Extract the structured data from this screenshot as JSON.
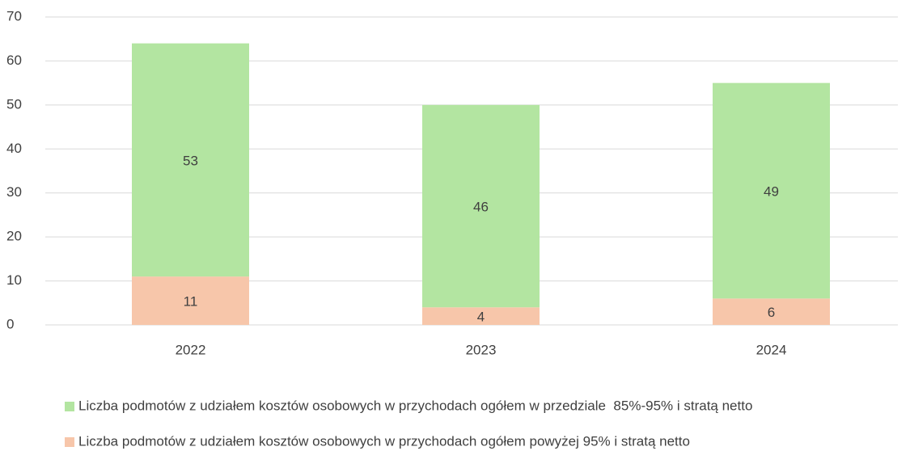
{
  "chart_data": {
    "type": "stacked_bar",
    "categories": [
      "2022",
      "2023",
      "2024"
    ],
    "series": [
      {
        "name": "Liczba podmotów z udziałem kosztów osobowych w przychodach ogółem powyżej 95% i stratą netto",
        "color": "#f7c6aa",
        "values": [
          11,
          4,
          6
        ]
      },
      {
        "name": "Liczba podmotów z udziałem kosztów osobowych w przychodach ogółem w przedziale  85%-95% i stratą netto",
        "color": "#b3e5a1",
        "values": [
          53,
          46,
          49
        ]
      }
    ],
    "ylim": [
      0,
      70
    ],
    "yticks": [
      0,
      10,
      20,
      30,
      40,
      50,
      60,
      70
    ],
    "grid": true,
    "legend": "bottom"
  }
}
